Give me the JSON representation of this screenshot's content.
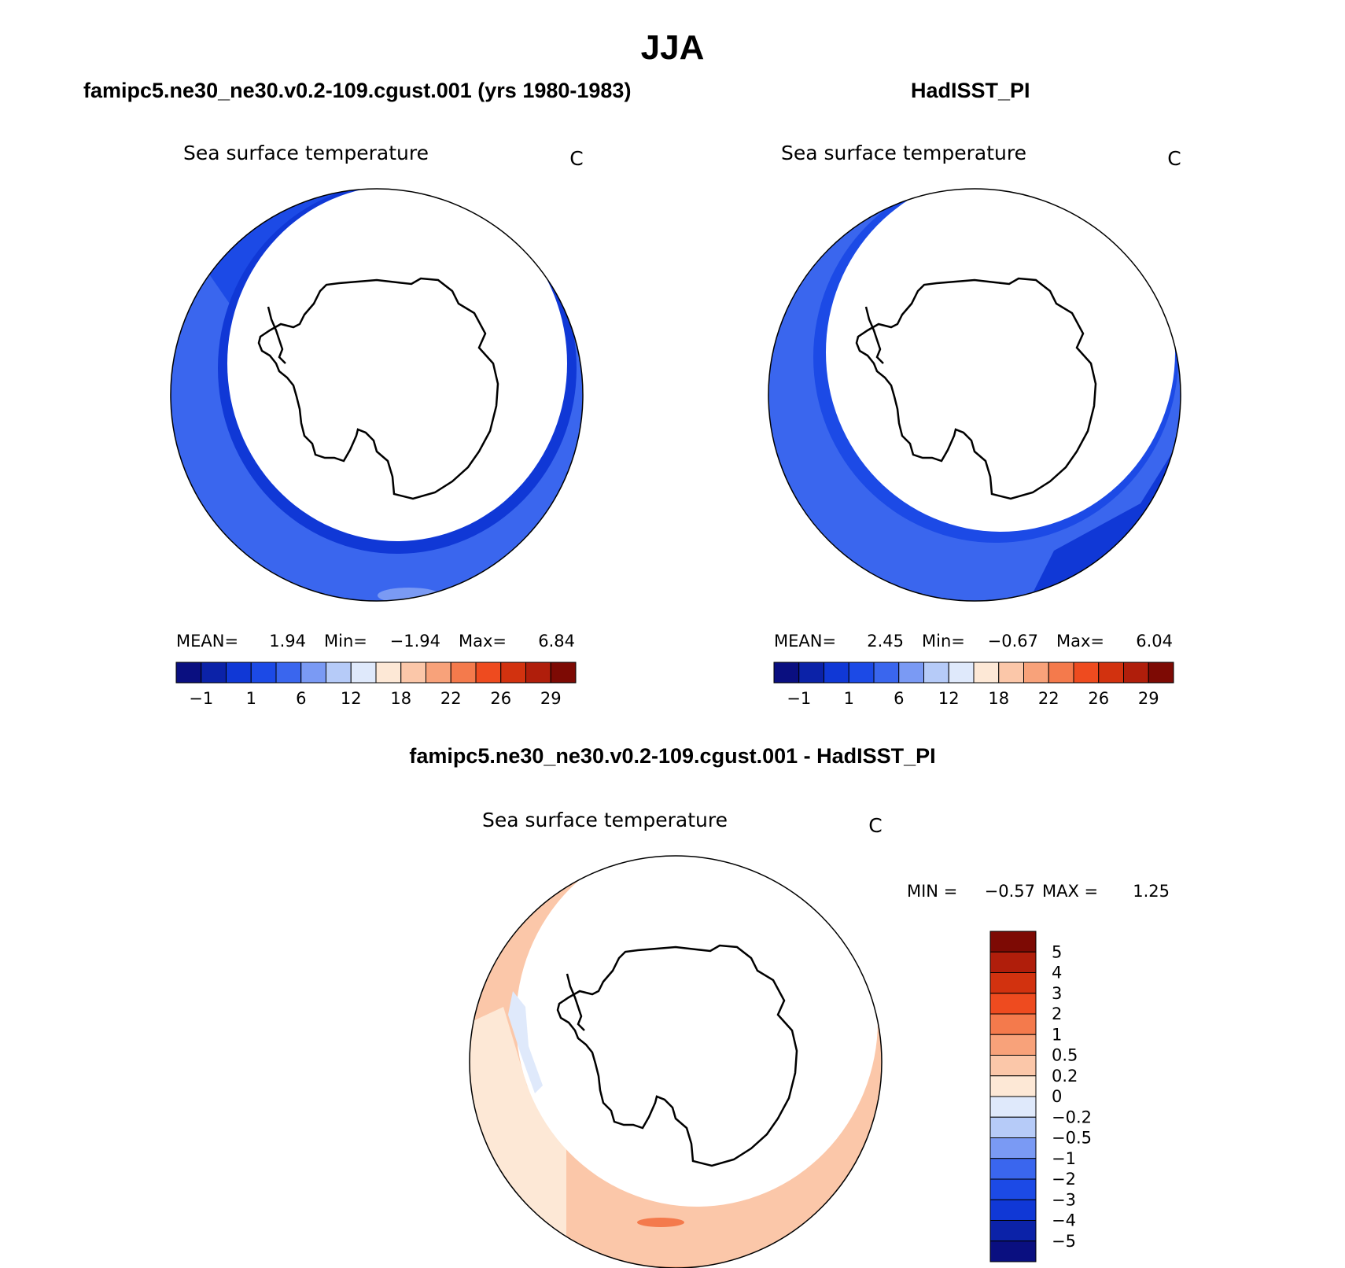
{
  "page": {
    "title": "JJA",
    "panel_a_title": "famipc5.ne30_ne30.v0.2-109.cgust.001 (yrs 1980-1983)",
    "panel_b_title": "HadISST_PI",
    "panel_c_title": "famipc5.ne30_ne30.v0.2-109.cgust.001 - HadISST_PI"
  },
  "chart_data": [
    {
      "type": "heatmap",
      "projection": "south polar stereographic",
      "title": "Sea surface temperature",
      "units": "C",
      "stats": {
        "mean_label": "MEAN=",
        "mean": "1.94",
        "min_label": "Min=",
        "min": "−1.94",
        "max_label": "Max=",
        "max": "6.84"
      },
      "colorbar": {
        "orientation": "horizontal",
        "colors": [
          "#0a0f80",
          "#0b22a8",
          "#1038d6",
          "#1c4ae6",
          "#3a66ee",
          "#7a9af4",
          "#b6cbf8",
          "#dfe9fb",
          "#fde8d6",
          "#fbc7a9",
          "#f8a27a",
          "#f47a4c",
          "#ee4b1f",
          "#d2320f",
          "#b01e0b",
          "#7d0a04"
        ],
        "tick_labels": [
          "−1",
          "1",
          "6",
          "12",
          "18",
          "22",
          "26",
          "29"
        ]
      }
    },
    {
      "type": "heatmap",
      "projection": "south polar stereographic",
      "title": "Sea surface temperature",
      "units": "C",
      "stats": {
        "mean_label": "MEAN=",
        "mean": "2.45",
        "min_label": "Min=",
        "min": "−0.67",
        "max_label": "Max=",
        "max": "6.04"
      },
      "colorbar": {
        "orientation": "horizontal",
        "colors": [
          "#0a0f80",
          "#0b22a8",
          "#1038d6",
          "#1c4ae6",
          "#3a66ee",
          "#7a9af4",
          "#b6cbf8",
          "#dfe9fb",
          "#fde8d6",
          "#fbc7a9",
          "#f8a27a",
          "#f47a4c",
          "#ee4b1f",
          "#d2320f",
          "#b01e0b",
          "#7d0a04"
        ],
        "tick_labels": [
          "−1",
          "1",
          "6",
          "12",
          "18",
          "22",
          "26",
          "29"
        ]
      }
    },
    {
      "type": "heatmap",
      "projection": "south polar stereographic",
      "title": "Sea surface temperature",
      "units": "C",
      "stats": {
        "min_label": "MIN =",
        "min": "−0.57",
        "max_label": "MAX =",
        "max": "1.25"
      },
      "colorbar": {
        "orientation": "vertical",
        "colors_top_to_bottom": [
          "#7d0a04",
          "#b01e0b",
          "#d2320f",
          "#ee4b1f",
          "#f47a4c",
          "#f8a27a",
          "#fbc7a9",
          "#fde8d6",
          "#dfe9fb",
          "#b6cbf8",
          "#7a9af4",
          "#3a66ee",
          "#1c4ae6",
          "#1038d6",
          "#0b22a8",
          "#0a0f80"
        ],
        "tick_labels": [
          "5",
          "4",
          "3",
          "2",
          "1",
          "0.5",
          "0.2",
          "0",
          "−0.2",
          "−0.5",
          "−1",
          "−2",
          "−3",
          "−4",
          "−5"
        ]
      }
    }
  ]
}
